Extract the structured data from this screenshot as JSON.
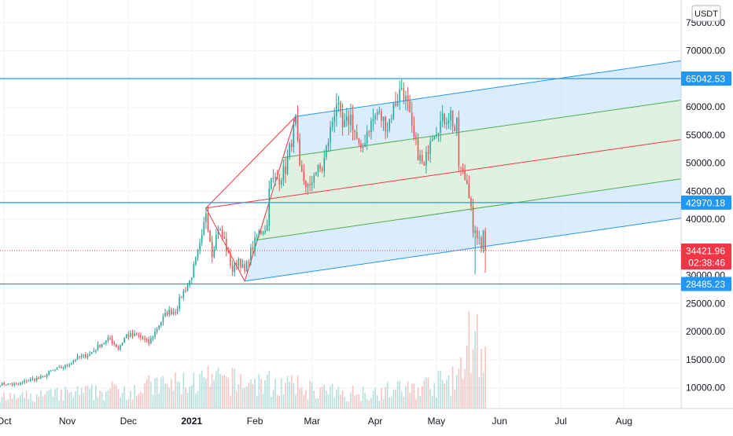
{
  "currency_badge": "USDT",
  "chart_data": {
    "type": "candlestick",
    "price_axis": {
      "ticks": [
        75000,
        70000,
        65000,
        60000,
        55000,
        50000,
        45000,
        40000,
        35000,
        30000,
        25000,
        20000,
        15000,
        10000
      ],
      "tick_labels": [
        "75000.00",
        "70000.00",
        "65000.00",
        "60000.00",
        "55000.00",
        "50000.00",
        "45000.00",
        "40000.00",
        "35000.00",
        "30000.00",
        "25000.00",
        "20000.00",
        "15000.00",
        "10000.00"
      ],
      "range": [
        5000,
        78000
      ]
    },
    "time_axis": {
      "labels": [
        "Oct",
        "Nov",
        "Dec",
        "2021",
        "Feb",
        "Mar",
        "Apr",
        "May",
        "Jun",
        "Jul",
        "Aug"
      ],
      "label_dates": [
        "2020-10-01",
        "2020-11-01",
        "2020-12-01",
        "2021-01-01",
        "2021-02-01",
        "2021-03-01",
        "2021-04-01",
        "2021-05-01",
        "2021-06-01",
        "2021-07-01",
        "2021-08-01"
      ],
      "range": [
        "2020-09-29",
        "2021-08-29"
      ]
    },
    "grid": true,
    "colors": {
      "up": "#26a69a",
      "down": "#ef5350",
      "level_line": "#2196f3",
      "current_price": "#f23645",
      "pitchfork_median": "#f23645",
      "pitchfork_inner": "#4caf50",
      "pitchfork_outer_fill": "#bbdefb",
      "pitchfork_inner_fill": "#c8e6c9"
    },
    "horizontal_levels": [
      {
        "price": 65042.53,
        "label": "65042.53"
      },
      {
        "price": 42970.18,
        "label": "42970.18"
      },
      {
        "price": 28485.23,
        "label": "28485.23"
      }
    ],
    "current_price": {
      "price": 34421.96,
      "label": "34421.96",
      "countdown": "02:38:46"
    },
    "pitchfork": {
      "anchors": [
        {
          "date": "2021-01-08",
          "price": 42000
        },
        {
          "date": "2021-02-21",
          "price": 58300
        },
        {
          "date": "2021-01-27",
          "price": 29000
        }
      ],
      "end_date": "2021-08-29",
      "inner_fraction": 0.5
    },
    "price_waypoints": [
      [
        "2020-09-29",
        10700
      ],
      [
        "2020-10-08",
        10600
      ],
      [
        "2020-10-12",
        11300
      ],
      [
        "2020-10-20",
        11900
      ],
      [
        "2020-10-24",
        13000
      ],
      [
        "2020-10-31",
        13800
      ],
      [
        "2020-11-05",
        15200
      ],
      [
        "2020-11-12",
        16000
      ],
      [
        "2020-11-17",
        17700
      ],
      [
        "2020-11-22",
        18700
      ],
      [
        "2020-11-26",
        17000
      ],
      [
        "2020-11-30",
        19400
      ],
      [
        "2020-12-06",
        19200
      ],
      [
        "2020-12-11",
        18000
      ],
      [
        "2020-12-16",
        21300
      ],
      [
        "2020-12-20",
        23500
      ],
      [
        "2020-12-24",
        23700
      ],
      [
        "2020-12-27",
        26500
      ],
      [
        "2020-12-31",
        29000
      ],
      [
        "2021-01-03",
        32500
      ],
      [
        "2021-01-06",
        36500
      ],
      [
        "2021-01-08",
        41500
      ],
      [
        "2021-01-11",
        34000
      ],
      [
        "2021-01-14",
        38500
      ],
      [
        "2021-01-17",
        36200
      ],
      [
        "2021-01-21",
        30800
      ],
      [
        "2021-01-24",
        33000
      ],
      [
        "2021-01-27",
        30500
      ],
      [
        "2021-01-30",
        34300
      ],
      [
        "2021-02-03",
        37600
      ],
      [
        "2021-02-07",
        38800
      ],
      [
        "2021-02-08",
        46500
      ],
      [
        "2021-02-13",
        47300
      ],
      [
        "2021-02-16",
        49000
      ],
      [
        "2021-02-21",
        57500
      ],
      [
        "2021-02-23",
        48500
      ],
      [
        "2021-02-26",
        46300
      ],
      [
        "2021-02-28",
        45200
      ],
      [
        "2021-03-02",
        48500
      ],
      [
        "2021-03-06",
        49000
      ],
      [
        "2021-03-10",
        55800
      ],
      [
        "2021-03-13",
        61000
      ],
      [
        "2021-03-16",
        56000
      ],
      [
        "2021-03-20",
        58200
      ],
      [
        "2021-03-25",
        51500
      ],
      [
        "2021-03-28",
        55800
      ],
      [
        "2021-04-02",
        59000
      ],
      [
        "2021-04-07",
        56500
      ],
      [
        "2021-04-10",
        60000
      ],
      [
        "2021-04-14",
        63600
      ],
      [
        "2021-04-17",
        60000
      ],
      [
        "2021-04-19",
        55600
      ],
      [
        "2021-04-22",
        51700
      ],
      [
        "2021-04-25",
        49000
      ],
      [
        "2021-04-28",
        54900
      ],
      [
        "2021-05-03",
        57200
      ],
      [
        "2021-05-08",
        58800
      ],
      [
        "2021-05-10",
        55800
      ],
      [
        "2021-05-11",
        56700
      ],
      [
        "2021-05-12",
        49500
      ],
      [
        "2021-05-16",
        46500
      ],
      [
        "2021-05-18",
        42900
      ],
      [
        "2021-05-19",
        37000
      ],
      [
        "2021-05-21",
        37300
      ],
      [
        "2021-05-23",
        34700
      ],
      [
        "2021-05-24",
        38700
      ],
      [
        "2021-05-25",
        34421.96
      ]
    ],
    "volume_waypoints": [
      [
        "2020-09-29",
        0.12
      ],
      [
        "2020-11-15",
        0.2
      ],
      [
        "2021-01-10",
        0.34
      ],
      [
        "2021-02-10",
        0.3
      ],
      [
        "2021-03-15",
        0.18
      ],
      [
        "2021-04-20",
        0.24
      ],
      [
        "2021-05-12",
        0.35
      ],
      [
        "2021-05-19",
        1.0
      ],
      [
        "2021-05-25",
        0.55
      ]
    ]
  }
}
